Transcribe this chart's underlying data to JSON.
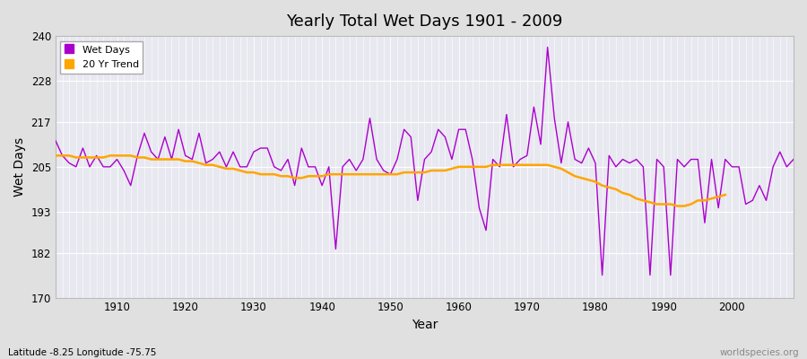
{
  "title": "Yearly Total Wet Days 1901 - 2009",
  "xlabel": "Year",
  "ylabel": "Wet Days",
  "subtitle": "Latitude -8.25 Longitude -75.75",
  "watermark": "worldspecies.org",
  "line_color": "#AA00CC",
  "trend_color": "#FFA500",
  "bg_color": "#E0E0E0",
  "plot_bg_color": "#E8E8F0",
  "ylim": [
    170,
    240
  ],
  "yticks": [
    170,
    182,
    193,
    205,
    217,
    228,
    240
  ],
  "xlim": [
    1901,
    2009
  ],
  "years": [
    1901,
    1902,
    1903,
    1904,
    1905,
    1906,
    1907,
    1908,
    1909,
    1910,
    1911,
    1912,
    1913,
    1914,
    1915,
    1916,
    1917,
    1918,
    1919,
    1920,
    1921,
    1922,
    1923,
    1924,
    1925,
    1926,
    1927,
    1928,
    1929,
    1930,
    1931,
    1932,
    1933,
    1934,
    1935,
    1936,
    1937,
    1938,
    1939,
    1940,
    1941,
    1942,
    1943,
    1944,
    1945,
    1946,
    1947,
    1948,
    1949,
    1950,
    1951,
    1952,
    1953,
    1954,
    1955,
    1956,
    1957,
    1958,
    1959,
    1960,
    1961,
    1962,
    1963,
    1964,
    1965,
    1966,
    1967,
    1968,
    1969,
    1970,
    1971,
    1972,
    1973,
    1974,
    1975,
    1976,
    1977,
    1978,
    1979,
    1980,
    1981,
    1982,
    1983,
    1984,
    1985,
    1986,
    1987,
    1988,
    1989,
    1990,
    1991,
    1992,
    1993,
    1994,
    1995,
    1996,
    1997,
    1998,
    1999,
    2000,
    2001,
    2002,
    2003,
    2004,
    2005,
    2006,
    2007,
    2008,
    2009
  ],
  "wet_days": [
    212,
    208,
    206,
    205,
    210,
    205,
    208,
    205,
    205,
    207,
    204,
    200,
    208,
    214,
    209,
    207,
    213,
    207,
    215,
    208,
    207,
    214,
    206,
    207,
    209,
    205,
    209,
    205,
    205,
    209,
    210,
    210,
    205,
    204,
    207,
    200,
    210,
    205,
    205,
    200,
    205,
    183,
    205,
    207,
    204,
    207,
    218,
    207,
    204,
    203,
    207,
    215,
    213,
    196,
    207,
    209,
    215,
    213,
    207,
    215,
    215,
    207,
    194,
    188,
    207,
    205,
    219,
    205,
    207,
    208,
    221,
    211,
    237,
    218,
    206,
    217,
    207,
    206,
    210,
    206,
    176,
    208,
    205,
    207,
    206,
    207,
    205,
    176,
    207,
    205,
    176,
    207,
    205,
    207,
    207,
    190,
    207,
    194,
    207,
    205,
    205,
    195,
    196,
    200,
    196,
    205,
    209,
    205,
    207
  ],
  "trend": [
    208.0,
    208.0,
    208.0,
    207.5,
    207.5,
    207.5,
    207.5,
    207.5,
    208.0,
    208.0,
    208.0,
    208.0,
    207.5,
    207.5,
    207.0,
    207.0,
    207.0,
    207.0,
    207.0,
    206.5,
    206.5,
    206.0,
    205.5,
    205.5,
    205.0,
    204.5,
    204.5,
    204.0,
    203.5,
    203.5,
    203.0,
    203.0,
    203.0,
    202.5,
    202.5,
    202.0,
    202.0,
    202.5,
    202.5,
    202.5,
    203.0,
    203.0,
    203.0,
    203.0,
    203.0,
    203.0,
    203.0,
    203.0,
    203.0,
    203.0,
    203.0,
    203.5,
    203.5,
    203.5,
    203.5,
    204.0,
    204.0,
    204.0,
    204.5,
    205.0,
    205.0,
    205.0,
    205.0,
    205.0,
    205.5,
    205.5,
    205.5,
    205.5,
    205.5,
    205.5,
    205.5,
    205.5,
    205.5,
    205.0,
    204.5,
    203.5,
    202.5,
    202.0,
    201.5,
    201.0,
    200.0,
    199.5,
    199.0,
    198.0,
    197.5,
    196.5,
    196.0,
    195.5,
    195.0,
    195.0,
    195.0,
    194.5,
    194.5,
    195.0,
    196.0,
    196.0,
    196.5,
    197.0,
    197.5
  ]
}
